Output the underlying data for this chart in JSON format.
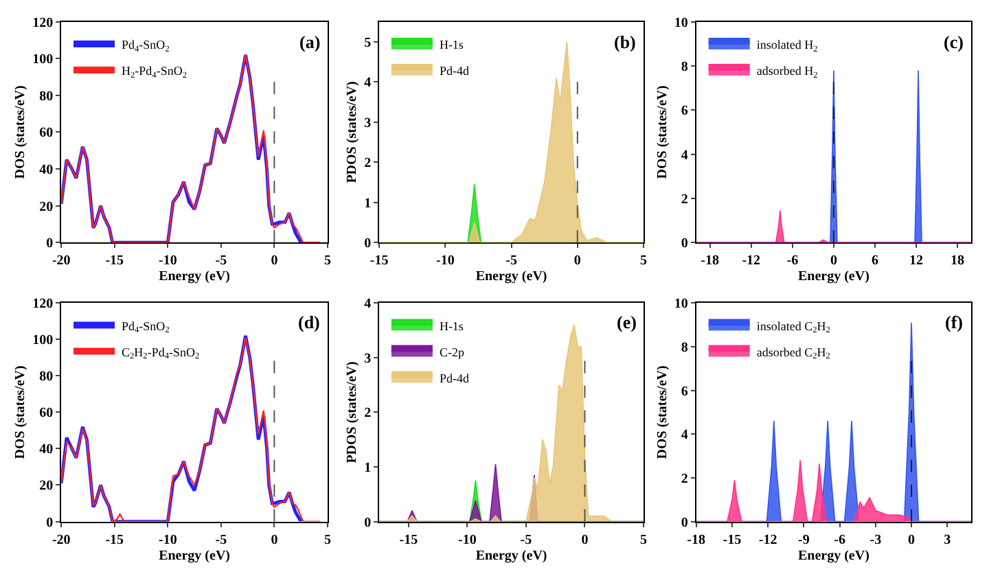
{
  "chart_data": [
    {
      "type": "line",
      "xlabel": "Energy (eV)",
      "ylabel": "DOS (states/eV)",
      "xlim": [
        -20,
        5
      ],
      "xticks": [
        -20,
        -15,
        -10,
        -5,
        0,
        5
      ],
      "ylim": [
        0,
        120
      ],
      "yticks": [
        0,
        20,
        40,
        60,
        80,
        100,
        120
      ],
      "legend": "top left",
      "annotations": [
        "(a)"
      ],
      "ref_lines": [
        {
          "axis": "x",
          "value": 0,
          "line_style": "dashed",
          "color": "#555555"
        }
      ],
      "series": [
        {
          "name": "Pd$_{4}$-SnO$_{2}$",
          "color": "#2222ff",
          "x": [
            -20,
            -19.5,
            -19,
            -18.6,
            -18,
            -17.6,
            -17,
            -16.8,
            -16.3,
            -16,
            -15.5,
            -15.2,
            -10,
            -9.5,
            -9,
            -8.5,
            -8,
            -7.5,
            -7,
            -6.5,
            -6,
            -5.4,
            -5,
            -4.7,
            -4.2,
            -3.5,
            -3.2,
            -2.7,
            -2.3,
            -2,
            -1.5,
            -1,
            -0.7,
            -0.5,
            -0.2,
            0,
            0.5,
            1,
            1.4,
            1.7,
            2,
            2.5
          ],
          "values": [
            21,
            45,
            40,
            35,
            52,
            45,
            8,
            10,
            20,
            14,
            8,
            0,
            0,
            22,
            26,
            33,
            22,
            18,
            28,
            42,
            43,
            62,
            58,
            54,
            64,
            80,
            86,
            102,
            90,
            75,
            45,
            58,
            40,
            20,
            10,
            10,
            11,
            11,
            16,
            10,
            5,
            0
          ]
        },
        {
          "name": "H$_{2}$-Pd$_{4}$-SnO$_{2}$",
          "color": "#ff2222",
          "x": [
            -20,
            -19.5,
            -19,
            -18.6,
            -18,
            -17.6,
            -17,
            -16.8,
            -16.3,
            -16,
            -15.5,
            -15.2,
            -10,
            -9.5,
            -9,
            -8.5,
            -8,
            -7.5,
            -7,
            -6.5,
            -6,
            -5.4,
            -5,
            -4.7,
            -4.2,
            -3.5,
            -3.2,
            -2.7,
            -2.3,
            -2,
            -1.5,
            -1,
            -0.7,
            -0.5,
            -0.2,
            0,
            0.5,
            1,
            1.4,
            1.7,
            2,
            2.2,
            2.7,
            4.3
          ],
          "values": [
            21,
            45,
            40,
            35,
            52,
            45,
            8,
            10,
            20,
            14,
            8,
            0,
            0,
            22,
            26,
            33,
            25,
            18,
            28,
            42,
            43,
            62,
            58,
            54,
            64,
            80,
            86,
            102,
            90,
            75,
            47,
            61,
            42,
            22,
            10,
            8,
            10,
            11,
            16,
            10,
            8,
            6,
            0,
            0
          ]
        }
      ]
    },
    {
      "type": "area",
      "xlabel": "Energy (eV)",
      "ylabel": "PDOS (states/eV)",
      "xlim": [
        -15,
        5
      ],
      "xticks": [
        -15,
        -10,
        -5,
        0,
        5
      ],
      "ylim": [
        0,
        5.5
      ],
      "yticks": [
        0,
        1,
        2,
        3,
        4,
        5
      ],
      "legend": "top left",
      "annotations": [
        "(b)"
      ],
      "ref_lines": [
        {
          "axis": "x",
          "value": 0,
          "line_style": "dashed",
          "color": "#555555"
        }
      ],
      "series": [
        {
          "name": "H-1s",
          "color": "#22dd22",
          "x": [
            -15,
            -8.3,
            -8.0,
            -7.8,
            -7.6,
            -7.3,
            5
          ],
          "values": [
            0,
            0,
            0.8,
            1.45,
            0.8,
            0,
            0
          ]
        },
        {
          "name": "Pd-4d",
          "color": "#e8c77a",
          "x": [
            -15,
            -8.2,
            -7.8,
            -7.4,
            -5,
            -4.2,
            -3.6,
            -3.2,
            -2.5,
            -2,
            -1.6,
            -1.3,
            -0.8,
            -0.6,
            -0.3,
            0,
            0.3,
            0.7,
            1.5,
            2.2,
            5
          ],
          "values": [
            0,
            0,
            0.5,
            0,
            0,
            0.2,
            0.6,
            0.55,
            1.5,
            2.8,
            4.1,
            3.5,
            5.0,
            4.0,
            2.0,
            0.95,
            0.3,
            0.05,
            0.12,
            0,
            0
          ]
        }
      ]
    },
    {
      "type": "area",
      "xlabel": "Energy (eV)",
      "ylabel": "DOS (states/eV)",
      "xlim": [
        -20,
        20
      ],
      "xticks": [
        -18,
        -12,
        -6,
        0,
        6,
        12,
        18
      ],
      "ylim": [
        0,
        10
      ],
      "yticks": [
        0,
        2,
        4,
        6,
        8,
        10
      ],
      "legend": "top left",
      "annotations": [
        "(c)"
      ],
      "ref_lines": [
        {
          "axis": "x",
          "value": 0,
          "line_style": "dashed",
          "color": "#222222"
        }
      ],
      "series": [
        {
          "name": "insolated H$_{2}$",
          "color": "#3355ee",
          "x": [
            -20,
            -0.5,
            -0.2,
            0,
            0.2,
            0.5,
            11.8,
            12.1,
            12.3,
            12.5,
            12.8,
            20
          ],
          "values": [
            0,
            0,
            4,
            7.8,
            4,
            0,
            0,
            4,
            7.8,
            4,
            0,
            0
          ]
        },
        {
          "name": "adsorbed H$_{2}$",
          "color": "#ff3388",
          "x": [
            -20,
            -8.4,
            -8.0,
            -7.8,
            -7.6,
            -7.2,
            -2.2,
            -1.5,
            -0.8,
            4,
            20
          ],
          "values": [
            0,
            0,
            0.8,
            1.45,
            0.8,
            0,
            0,
            0.12,
            0,
            0,
            0
          ]
        }
      ]
    },
    {
      "type": "line",
      "xlabel": "Energy (eV)",
      "ylabel": "DOS (states/eV)",
      "xlim": [
        -20,
        5
      ],
      "xticks": [
        -20,
        -15,
        -10,
        -5,
        0,
        5
      ],
      "ylim": [
        0,
        120
      ],
      "yticks": [
        0,
        20,
        40,
        60,
        80,
        100,
        120
      ],
      "legend": "top left",
      "annotations": [
        "(d)"
      ],
      "ref_lines": [
        {
          "axis": "x",
          "value": 0,
          "line_style": "dashed",
          "color": "#555555"
        }
      ],
      "series": [
        {
          "name": "Pd$_{4}$-SnO$_{2}$",
          "color": "#2222ff",
          "x": [
            -20,
            -19.5,
            -19,
            -18.6,
            -18,
            -17.6,
            -17,
            -16.8,
            -16.3,
            -16,
            -15.5,
            -15.2,
            -10,
            -9.5,
            -9,
            -8.5,
            -8,
            -7.5,
            -7,
            -6.5,
            -6,
            -5.4,
            -5,
            -4.7,
            -4.2,
            -3.5,
            -3.2,
            -2.7,
            -2.3,
            -2,
            -1.5,
            -1,
            -0.7,
            -0.5,
            -0.2,
            0,
            0.5,
            1,
            1.4,
            1.7,
            2,
            2.5
          ],
          "values": [
            21,
            46,
            40,
            35,
            52,
            45,
            8,
            10,
            20,
            14,
            8,
            0,
            0,
            22,
            26,
            33,
            22,
            17,
            28,
            42,
            43,
            62,
            58,
            54,
            64,
            80,
            86,
            102,
            90,
            75,
            45,
            58,
            40,
            20,
            10,
            10,
            11,
            11,
            16,
            10,
            5,
            0
          ]
        },
        {
          "name": "C$_{2}$H$_{2}$-Pd$_{4}$-SnO$_{2}$",
          "color": "#ff2222",
          "x": [
            -20,
            -19.5,
            -19,
            -18.6,
            -18,
            -17.6,
            -17,
            -16.8,
            -16.3,
            -16,
            -15.5,
            -15.2,
            -14.8,
            -14.5,
            -14.1,
            -10,
            -9.5,
            -9,
            -8.5,
            -8,
            -7.5,
            -7,
            -6.5,
            -6,
            -5.4,
            -5,
            -4.7,
            -4.2,
            -3.5,
            -3.2,
            -2.7,
            -2.3,
            -2,
            -1.5,
            -1,
            -0.7,
            -0.5,
            -0.2,
            0,
            0.5,
            1,
            1.4,
            1.7,
            2,
            2.2,
            2.7,
            4.3
          ],
          "values": [
            21,
            44,
            40,
            35,
            51,
            45,
            9,
            10,
            20,
            14,
            8,
            0,
            1,
            4,
            0,
            0,
            25,
            26,
            33,
            25,
            20,
            28,
            42,
            43,
            62,
            58,
            54,
            64,
            82,
            86,
            101,
            90,
            75,
            48,
            61,
            42,
            22,
            10,
            8,
            10,
            11,
            16,
            10,
            9,
            7,
            0,
            0
          ]
        }
      ]
    },
    {
      "type": "area",
      "xlabel": "Energy (eV)",
      "ylabel": "PDOS (states/eV)",
      "xlim": [
        -17.5,
        5
      ],
      "xticks": [
        -15,
        -10,
        -5,
        0,
        5
      ],
      "ylim": [
        0,
        4
      ],
      "yticks": [
        0,
        1,
        2,
        3,
        4
      ],
      "legend": "top left",
      "annotations": [
        "(e)"
      ],
      "ref_lines": [
        {
          "axis": "x",
          "value": 0,
          "line_style": "dashed",
          "color": "#555555"
        }
      ],
      "series": [
        {
          "name": "H-1s",
          "color": "#22dd22",
          "x": [
            -17.5,
            -9.8,
            -9.5,
            -9.3,
            -9.1,
            -8.8,
            5
          ],
          "values": [
            0,
            0,
            0.4,
            0.75,
            0.4,
            0,
            0
          ]
        },
        {
          "name": "C-2p",
          "color": "#7a1a9a",
          "x": [
            -17.5,
            -15.1,
            -14.7,
            -14.3,
            -9.8,
            -9.3,
            -8.8,
            -8.1,
            -7.8,
            -7.6,
            -7.4,
            -7.1,
            -4.7,
            -4.3,
            -4.0,
            5
          ],
          "values": [
            0,
            0,
            0.2,
            0,
            0,
            0.38,
            0,
            0,
            0.6,
            1.05,
            0.6,
            0,
            0,
            0.85,
            0,
            0
          ]
        },
        {
          "name": "Pd-4d",
          "color": "#e8c77a",
          "x": [
            -17.5,
            -15.1,
            -14.7,
            -14.3,
            -9.7,
            -9.3,
            -8.9,
            -8.0,
            -7.6,
            -7.2,
            -5,
            -4.5,
            -4.3,
            -4,
            -3.6,
            -3.3,
            -3,
            -2.7,
            -2.2,
            -1.9,
            -1.6,
            -1.2,
            -0.9,
            -0.6,
            -0.3,
            0,
            0.3,
            1.6,
            2.3,
            5
          ],
          "values": [
            0,
            0,
            0.1,
            0,
            0,
            0.05,
            0,
            0,
            0.1,
            0,
            0,
            0.5,
            0.8,
            0.6,
            1.5,
            1.3,
            0.7,
            1.0,
            2.5,
            2.4,
            2.9,
            3.4,
            3.6,
            3.2,
            3.2,
            1.2,
            0.1,
            0.1,
            0,
            0
          ]
        }
      ]
    },
    {
      "type": "area",
      "xlabel": "Energy (eV)",
      "ylabel": "DOS (states/eV)",
      "xlim": [
        -18,
        5
      ],
      "xticks": [
        -18,
        -15,
        -12,
        -9,
        -6,
        -3,
        0,
        3
      ],
      "ylim": [
        0,
        10
      ],
      "yticks": [
        0,
        2,
        4,
        6,
        8,
        10
      ],
      "legend": "top left",
      "annotations": [
        "(f)"
      ],
      "ref_lines": [
        {
          "axis": "x",
          "value": 0,
          "line_style": "dashed",
          "color": "#222222"
        }
      ],
      "series": [
        {
          "name": "insolated C$_{2}$H$_{2}$",
          "color": "#3355ee",
          "x": [
            -18,
            -12.1,
            -11.7,
            -11.5,
            -11.3,
            -10.9,
            -7.6,
            -7.2,
            -7.0,
            -6.8,
            -6.4,
            -5.6,
            -5.2,
            -5.0,
            -4.8,
            -4.4,
            -0.6,
            -0.2,
            0,
            0.2,
            0.6,
            5
          ],
          "values": [
            0,
            0,
            2.5,
            4.6,
            2.5,
            0,
            0,
            2.5,
            4.6,
            2.5,
            0,
            0,
            2.5,
            4.6,
            2.5,
            0,
            0,
            5,
            9.1,
            5,
            0,
            0
          ]
        },
        {
          "name": "adsorbed C$_{2}$H$_{2}$",
          "color": "#ff3388",
          "x": [
            -18,
            -15.4,
            -15.0,
            -14.8,
            -14.6,
            -14.2,
            -9.9,
            -9.5,
            -9.3,
            -9.1,
            -8.7,
            -8.3,
            -7.9,
            -7.7,
            -7.5,
            -7.1,
            -4.8,
            -4.3,
            -4,
            -3.5,
            -3,
            -2,
            -1,
            -0.3,
            0,
            5
          ],
          "values": [
            0,
            0,
            1.0,
            1.9,
            1.0,
            0,
            0,
            1.5,
            2.8,
            1.5,
            0,
            0,
            1.4,
            2.65,
            1.4,
            0,
            0,
            0.9,
            0.6,
            1.1,
            0.5,
            0.3,
            0.3,
            0.2,
            0,
            0
          ]
        }
      ]
    }
  ]
}
